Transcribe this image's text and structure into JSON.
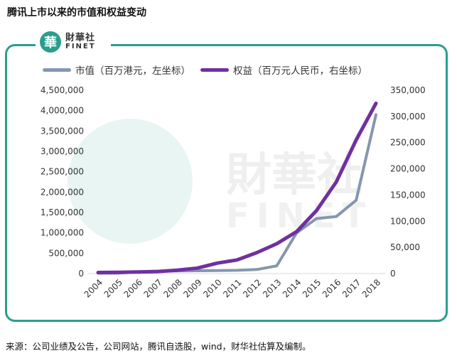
{
  "title": "腾讯上市以来的市值和权益变动",
  "source": "来源：公司业绩及公告，公司网站，腾讯自选股，wind，财华社估算及编制。",
  "logo": {
    "mark": "華",
    "name_cn": "財華社",
    "name_en": "FINET"
  },
  "watermark": {
    "mark": "華",
    "name_cn": "財華社",
    "name_en": "FINET"
  },
  "colors": {
    "frame": "#2a9e8c",
    "market_cap": "#8497b0",
    "equity": "#7030a0",
    "grid": "#d9d9d9"
  },
  "chart_data": {
    "type": "line",
    "title": "",
    "x": [
      "2004",
      "2005",
      "2006",
      "2007",
      "2008",
      "2009",
      "2010",
      "2011",
      "2012",
      "2013",
      "2014",
      "2015",
      "2016",
      "2017",
      "2018"
    ],
    "series": [
      {
        "name": "市值（百万港元，左坐标）",
        "axis": "left",
        "values": [
          8000,
          10000,
          40000,
          60000,
          65000,
          70000,
          75000,
          80000,
          100000,
          190000,
          1000000,
          1350000,
          1400000,
          1800000,
          3900000
        ]
      },
      {
        "name": "权益（百万元人民币，右坐标）",
        "axis": "right",
        "values": [
          2000,
          2500,
          3000,
          4000,
          6500,
          10500,
          20000,
          26000,
          40000,
          57000,
          80000,
          120000,
          175000,
          255000,
          325000
        ]
      }
    ],
    "y_left": {
      "min": 0,
      "max": 4500000,
      "ticks": [
        "0",
        "500,000",
        "1,000,000",
        "1,500,000",
        "2,000,000",
        "2,500,000",
        "3,000,000",
        "3,500,000",
        "4,000,000",
        "4,500,000"
      ]
    },
    "y_right": {
      "min": 0,
      "max": 350000,
      "ticks": [
        "0",
        "50,000",
        "100,000",
        "150,000",
        "200,000",
        "250,000",
        "300,000",
        "350,000"
      ]
    },
    "legend": "top",
    "grid": false
  }
}
